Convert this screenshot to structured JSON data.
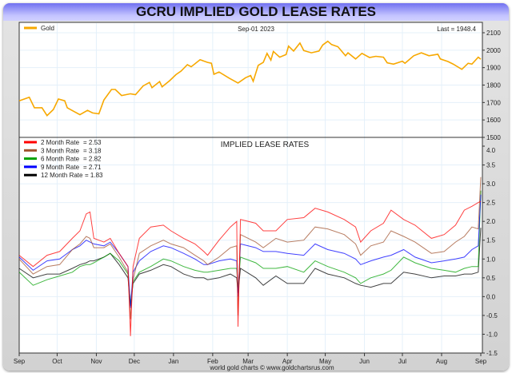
{
  "title": "GCRU IMPLIED GOLD LEASE RATES",
  "footer": "world gold charts © www.goldchartsrus.com",
  "chart_data": [
    {
      "type": "line",
      "date_label": "Sep-01  2023",
      "last_label": "Last = 1948.4",
      "yaxis": {
        "position": "right",
        "ylim": [
          1500,
          2100
        ],
        "ticks": [
          "1500",
          "1600",
          "1700",
          "1800",
          "1900",
          "2000",
          "2100"
        ]
      },
      "grid": true,
      "legend": "top-left",
      "series": [
        {
          "name": "Gold",
          "color": "#f7a800",
          "points": [
            [
              "2022-09-01",
              1710
            ],
            [
              "2022-09-09",
              1730
            ],
            [
              "2022-09-13",
              1670
            ],
            [
              "2022-09-19",
              1670
            ],
            [
              "2022-09-23",
              1625
            ],
            [
              "2022-09-28",
              1660
            ],
            [
              "2022-10-02",
              1720
            ],
            [
              "2022-10-07",
              1710
            ],
            [
              "2022-10-09",
              1670
            ],
            [
              "2022-10-14",
              1650
            ],
            [
              "2022-10-19",
              1630
            ],
            [
              "2022-10-25",
              1655
            ],
            [
              "2022-10-29",
              1640
            ],
            [
              "2022-11-03",
              1635
            ],
            [
              "2022-11-07",
              1715
            ],
            [
              "2022-11-13",
              1775
            ],
            [
              "2022-11-16",
              1775
            ],
            [
              "2022-11-21",
              1740
            ],
            [
              "2022-11-28",
              1750
            ],
            [
              "2022-12-02",
              1745
            ],
            [
              "2022-12-08",
              1795
            ],
            [
              "2022-12-13",
              1815
            ],
            [
              "2022-12-15",
              1785
            ],
            [
              "2022-12-21",
              1820
            ],
            [
              "2022-12-23",
              1790
            ],
            [
              "2022-12-29",
              1825
            ],
            [
              "2023-01-03",
              1860
            ],
            [
              "2023-01-07",
              1880
            ],
            [
              "2023-01-12",
              1917
            ],
            [
              "2023-01-15",
              1905
            ],
            [
              "2023-01-22",
              1945
            ],
            [
              "2023-01-28",
              1930
            ],
            [
              "2023-01-31",
              1925
            ],
            [
              "2023-02-02",
              1862
            ],
            [
              "2023-02-06",
              1875
            ],
            [
              "2023-02-14",
              1840
            ],
            [
              "2023-02-21",
              1812
            ],
            [
              "2023-02-27",
              1842
            ],
            [
              "2023-03-03",
              1855
            ],
            [
              "2023-03-05",
              1822
            ],
            [
              "2023-03-09",
              1913
            ],
            [
              "2023-03-13",
              1930
            ],
            [
              "2023-03-16",
              1982
            ],
            [
              "2023-03-19",
              1943
            ],
            [
              "2023-03-21",
              1993
            ],
            [
              "2023-03-26",
              1960
            ],
            [
              "2023-03-31",
              1975
            ],
            [
              "2023-04-02",
              2023
            ],
            [
              "2023-04-06",
              1995
            ],
            [
              "2023-04-11",
              2041
            ],
            [
              "2023-04-14",
              1998
            ],
            [
              "2023-04-20",
              1985
            ],
            [
              "2023-04-26",
              1995
            ],
            [
              "2023-04-29",
              2030
            ],
            [
              "2023-05-03",
              2051
            ],
            [
              "2023-05-06",
              2032
            ],
            [
              "2023-05-11",
              2020
            ],
            [
              "2023-05-17",
              1968
            ],
            [
              "2023-05-19",
              1985
            ],
            [
              "2023-05-25",
              1950
            ],
            [
              "2023-05-30",
              1982
            ],
            [
              "2023-06-05",
              1958
            ],
            [
              "2023-06-10",
              1965
            ],
            [
              "2023-06-16",
              1960
            ],
            [
              "2023-06-19",
              1928
            ],
            [
              "2023-06-24",
              1920
            ],
            [
              "2023-07-01",
              1937
            ],
            [
              "2023-07-03",
              1925
            ],
            [
              "2023-07-10",
              1968
            ],
            [
              "2023-07-16",
              1985
            ],
            [
              "2023-07-22",
              1968
            ],
            [
              "2023-07-29",
              1977
            ],
            [
              "2023-07-31",
              1950
            ],
            [
              "2023-08-06",
              1935
            ],
            [
              "2023-08-10",
              1921
            ],
            [
              "2023-08-17",
              1890
            ],
            [
              "2023-08-22",
              1925
            ],
            [
              "2023-08-25",
              1920
            ],
            [
              "2023-08-30",
              1960
            ],
            [
              "2023-09-01",
              1948.4
            ]
          ]
        }
      ]
    },
    {
      "type": "line",
      "title": "IMPLIED LEASE RATES",
      "yaxis": {
        "position": "right",
        "ylim": [
          -1.5,
          4.0
        ],
        "ticks": [
          "-1.5",
          "-1.0",
          "-0.5",
          "0.0",
          "0.5",
          "1.0",
          "1.5",
          "2.0",
          "2.5",
          "3.0",
          "3.5",
          "4.0"
        ]
      },
      "xaxis": {
        "range": [
          "2022-09-01",
          "2023-09-01"
        ],
        "ticks": [
          "Sep",
          "Oct",
          "Nov",
          "Dec",
          "Jan",
          "Feb",
          "Mar",
          "Apr",
          "May",
          "Jun",
          "Jul",
          "Aug",
          "Sep"
        ]
      },
      "grid": true,
      "legend": "top-left",
      "dates": [
        "2022-09-01",
        "2022-09-12",
        "2022-09-23",
        "2022-10-03",
        "2022-10-13",
        "2022-10-19",
        "2022-10-24",
        "2022-10-27",
        "2022-10-30",
        "2022-11-07",
        "2022-11-12",
        "2022-11-19",
        "2022-11-26",
        "2022-11-28",
        "2022-11-30",
        "2022-12-05",
        "2022-12-14",
        "2022-12-24",
        "2022-12-30",
        "2023-01-09",
        "2023-01-18",
        "2023-01-25",
        "2023-01-28",
        "2023-02-06",
        "2023-02-15",
        "2023-02-20",
        "2023-02-21",
        "2023-02-23",
        "2023-03-07",
        "2023-03-13",
        "2023-03-23",
        "2023-04-01",
        "2023-04-14",
        "2023-04-23",
        "2023-05-03",
        "2023-05-16",
        "2023-05-25",
        "2023-05-29",
        "2023-06-06",
        "2023-06-16",
        "2023-06-22",
        "2023-07-02",
        "2023-07-11",
        "2023-07-24",
        "2023-08-03",
        "2023-08-12",
        "2023-08-19",
        "2023-08-25",
        "2023-08-30",
        "2023-09-01"
      ],
      "series": [
        {
          "name": "2 Month Rate",
          "last": "= 2.53",
          "color": "#ff0000",
          "values": [
            1.1,
            0.8,
            1.1,
            1.2,
            1.55,
            1.75,
            2.2,
            2.25,
            1.55,
            1.45,
            1.55,
            1.15,
            0.8,
            -1.05,
            0.8,
            1.55,
            1.85,
            1.9,
            1.75,
            1.55,
            1.4,
            1.2,
            1.1,
            1.5,
            1.85,
            2.0,
            -0.8,
            2.05,
            1.95,
            1.75,
            1.75,
            2.05,
            2.1,
            2.35,
            2.25,
            2.05,
            1.85,
            1.45,
            1.75,
            1.95,
            2.3,
            2.05,
            1.9,
            1.55,
            1.65,
            1.9,
            2.3,
            2.4,
            2.5,
            2.53
          ]
        },
        {
          "name": "3 Month Rate",
          "last": "= 3.18",
          "color": "#a0522d",
          "values": [
            1.0,
            0.6,
            0.8,
            0.85,
            1.25,
            1.4,
            1.6,
            1.55,
            1.3,
            1.3,
            1.4,
            1.05,
            0.65,
            -0.6,
            0.45,
            1.15,
            1.35,
            1.5,
            1.4,
            1.3,
            1.1,
            0.95,
            0.85,
            1.05,
            1.3,
            1.35,
            -0.5,
            1.65,
            1.45,
            1.3,
            1.55,
            1.45,
            1.5,
            1.85,
            1.8,
            1.65,
            1.4,
            1.1,
            1.35,
            1.45,
            1.75,
            1.6,
            1.45,
            1.15,
            1.2,
            1.45,
            1.6,
            1.85,
            1.8,
            3.18
          ]
        },
        {
          "name": "6 Month Rate",
          "last": "= 2.82",
          "color": "#00a000",
          "values": [
            0.65,
            0.3,
            0.45,
            0.55,
            0.65,
            0.8,
            0.85,
            0.85,
            0.9,
            1.05,
            1.15,
            0.95,
            0.6,
            -0.2,
            0.4,
            0.65,
            0.8,
            1.0,
            0.95,
            0.8,
            0.7,
            0.65,
            0.65,
            0.7,
            0.75,
            0.75,
            0.2,
            1.05,
            0.9,
            0.75,
            0.75,
            0.8,
            0.65,
            0.95,
            0.8,
            0.65,
            0.5,
            0.35,
            0.5,
            0.6,
            0.7,
            1.05,
            0.9,
            0.75,
            0.7,
            0.65,
            0.75,
            0.8,
            0.8,
            2.82
          ]
        },
        {
          "name": "9 Month Rate",
          "last": "= 2.71",
          "color": "#0000ff",
          "values": [
            1.05,
            0.7,
            0.95,
            1.0,
            1.25,
            1.35,
            1.5,
            1.45,
            1.4,
            1.35,
            1.45,
            1.15,
            0.8,
            -0.3,
            0.65,
            0.95,
            1.2,
            1.35,
            1.3,
            1.15,
            1.0,
            0.85,
            0.85,
            0.95,
            1.0,
            0.95,
            0.0,
            1.4,
            1.3,
            1.2,
            1.2,
            1.15,
            1.1,
            1.4,
            1.25,
            1.15,
            1.0,
            0.85,
            0.95,
            1.05,
            1.1,
            1.25,
            1.05,
            0.9,
            0.95,
            1.0,
            1.05,
            1.25,
            1.35,
            2.71
          ]
        },
        {
          "name": "12 Month Rate",
          "last": "= 1.83",
          "color": "#000000",
          "values": [
            0.75,
            0.5,
            0.6,
            0.6,
            0.75,
            0.85,
            0.9,
            0.95,
            0.95,
            1.05,
            1.15,
            0.85,
            0.5,
            -0.25,
            0.35,
            0.6,
            0.7,
            0.85,
            0.8,
            0.6,
            0.5,
            0.5,
            0.45,
            0.5,
            0.6,
            0.5,
            0.1,
            0.75,
            0.5,
            0.3,
            0.55,
            0.35,
            0.35,
            0.75,
            0.6,
            0.5,
            0.35,
            0.3,
            0.25,
            0.35,
            0.35,
            0.65,
            0.6,
            0.5,
            0.55,
            0.55,
            0.6,
            0.6,
            0.65,
            1.83
          ]
        }
      ]
    }
  ]
}
